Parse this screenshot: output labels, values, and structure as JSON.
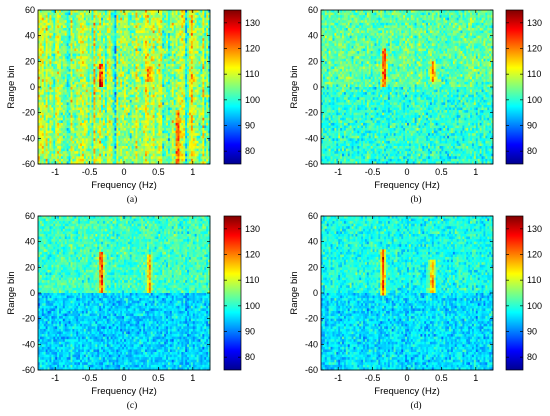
{
  "colors": {
    "colormap": [
      "#00008f",
      "#0000ff",
      "#007fff",
      "#00ffff",
      "#7fff7f",
      "#ffff00",
      "#ff7f00",
      "#ff0000",
      "#7f0000"
    ],
    "background": "#ffffff",
    "axis": "#000000"
  },
  "chart_data": [
    {
      "type": "heatmap",
      "caption": "(a)",
      "xlabel": "Frequency (Hz)",
      "ylabel": "Range bin",
      "xlim": [
        -1.25,
        1.25
      ],
      "ylim": [
        -60,
        60
      ],
      "x_ticks": [
        "-1",
        "-0.5",
        "0",
        "0.5",
        "1"
      ],
      "y_ticks": [
        "60",
        "40",
        "20",
        "0",
        "-20",
        "-40",
        "-60"
      ],
      "colorbar": {
        "range": [
          75,
          135
        ],
        "ticks": [
          "80",
          "90",
          "100",
          "110",
          "120",
          "130"
        ]
      },
      "background_level": 106,
      "lower_half_level": 106,
      "noise_spread": 7,
      "vertical_streaks": true,
      "features": [
        {
          "x": -0.33,
          "y_from": 2,
          "y_to": 17,
          "peak": 130
        },
        {
          "x": 0.37,
          "y_from": 5,
          "y_to": 15,
          "peak": 121
        },
        {
          "x": 0.78,
          "y_from": -60,
          "y_to": -20,
          "peak": 124
        }
      ]
    },
    {
      "type": "heatmap",
      "caption": "(b)",
      "xlabel": "Frequency (Hz)",
      "ylabel": "Range bin",
      "xlim": [
        -1.25,
        1.25
      ],
      "ylim": [
        -60,
        60
      ],
      "x_ticks": [
        "-1",
        "-0.5",
        "0",
        "0.5",
        "1"
      ],
      "y_ticks": [
        "60",
        "40",
        "20",
        "0",
        "-20",
        "-40",
        "-60"
      ],
      "colorbar": {
        "range": [
          75,
          135
        ],
        "ticks": [
          "80",
          "90",
          "100",
          "110",
          "120",
          "130"
        ]
      },
      "background_level": 103,
      "lower_half_level": 100,
      "noise_spread": 6,
      "vertical_streaks": false,
      "features": [
        {
          "x": -0.33,
          "y_from": 2,
          "y_to": 28,
          "peak": 128
        },
        {
          "x": 0.38,
          "y_from": 5,
          "y_to": 18,
          "peak": 121
        }
      ]
    },
    {
      "type": "heatmap",
      "caption": "(c)",
      "xlabel": "Frequency (Hz)",
      "ylabel": "Range bin",
      "xlim": [
        -1.25,
        1.25
      ],
      "ylim": [
        -60,
        60
      ],
      "x_ticks": [
        "-1",
        "-0.5",
        "0",
        "0.5",
        "1"
      ],
      "y_ticks": [
        "60",
        "40",
        "20",
        "0",
        "-20",
        "-40",
        "-60"
      ],
      "colorbar": {
        "range": [
          75,
          135
        ],
        "ticks": [
          "80",
          "90",
          "100",
          "110",
          "120",
          "130"
        ]
      },
      "background_level": 101,
      "lower_half_level": 95,
      "noise_spread": 5,
      "vertical_streaks": false,
      "features": [
        {
          "x": -0.33,
          "y_from": 2,
          "y_to": 30,
          "peak": 128
        },
        {
          "x": 0.37,
          "y_from": 2,
          "y_to": 28,
          "peak": 120
        }
      ]
    },
    {
      "type": "heatmap",
      "caption": "(d)",
      "xlabel": "Frequency (Hz)",
      "ylabel": "Range bin",
      "xlim": [
        -1.25,
        1.25
      ],
      "ylim": [
        -60,
        60
      ],
      "x_ticks": [
        "-1",
        "-0.5",
        "0",
        "0.5",
        "1"
      ],
      "y_ticks": [
        "60",
        "40",
        "20",
        "0",
        "-20",
        "-40",
        "-60"
      ],
      "colorbar": {
        "range": [
          75,
          135
        ],
        "ticks": [
          "80",
          "90",
          "100",
          "110",
          "120",
          "130"
        ]
      },
      "background_level": 99,
      "lower_half_level": 96,
      "noise_spread": 5,
      "vertical_streaks": false,
      "features": [
        {
          "x": -0.35,
          "y_from": 0,
          "y_to": 32,
          "peak": 128
        },
        {
          "x": 0.37,
          "y_from": 2,
          "y_to": 25,
          "peak": 122
        }
      ]
    }
  ]
}
